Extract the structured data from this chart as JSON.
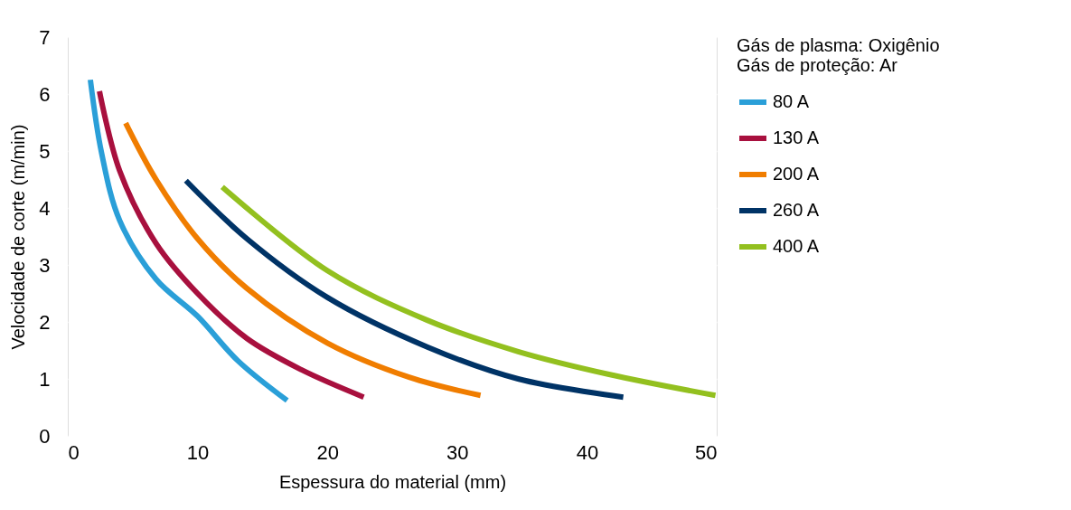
{
  "chart_data": {
    "type": "line",
    "xlabel": "Espessura do material (mm)",
    "ylabel": "Velocidade de corte (m/min)",
    "legend_title": "Gás de plasma: Oxigênio\nGás de proteção: Ar",
    "xlim": [
      0,
      50
    ],
    "xticks": [
      0,
      10,
      20,
      30,
      40,
      50
    ],
    "ylim": [
      0,
      7
    ],
    "yticks": [
      0,
      1,
      2,
      3,
      4,
      5,
      6,
      7
    ],
    "grid": "y",
    "legend": "top right",
    "marker": "none",
    "line_style": "solid",
    "series": [
      {
        "name": "80 A",
        "color": "#2a9fd8",
        "x": [
          1.74,
          2.6,
          4.0,
          6.8,
          10,
          13.1,
          16.9
        ],
        "values": [
          6.25,
          4.97,
          3.78,
          2.75,
          2.1,
          1.32,
          0.62
        ]
      },
      {
        "name": "130 A",
        "color": "#a8103e",
        "x": [
          2.44,
          4.0,
          6.8,
          10,
          13.8,
          18,
          22.8
        ],
        "values": [
          6.05,
          4.65,
          3.38,
          2.5,
          1.71,
          1.16,
          0.68
        ]
      },
      {
        "name": "200 A",
        "color": "#f07d00",
        "x": [
          4.46,
          6.8,
          10,
          13.8,
          20,
          26.3,
          31.8
        ],
        "values": [
          5.49,
          4.5,
          3.46,
          2.59,
          1.63,
          1.03,
          0.71
        ]
      },
      {
        "name": "260 A",
        "color": "#003366",
        "x": [
          9.1,
          13.8,
          20,
          27.7,
          34.7,
          42.8
        ],
        "values": [
          4.48,
          3.46,
          2.43,
          1.56,
          1.0,
          0.68
        ]
      },
      {
        "name": "400 A",
        "color": "#93c01f",
        "x": [
          11.9,
          20,
          27.7,
          34.7,
          41.7,
          49.9
        ],
        "values": [
          4.37,
          2.9,
          2.03,
          1.48,
          1.08,
          0.71
        ]
      }
    ]
  }
}
